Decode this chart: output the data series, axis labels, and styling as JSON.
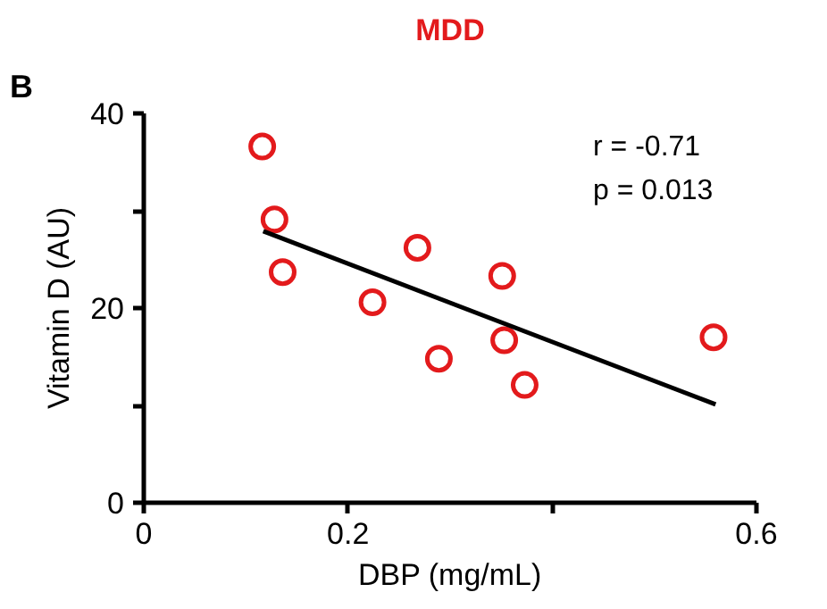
{
  "chart_data": {
    "type": "scatter",
    "title": "MDD",
    "xlabel": "DBP (mg/mL)",
    "ylabel": "Vitamin D (AU)",
    "annotations": [
      "B",
      "r = -0.71",
      "p =  0.013"
    ],
    "xlim": [
      0,
      0.6
    ],
    "ylim": [
      0,
      40
    ],
    "xticks": [
      0,
      0.2,
      {
        "value": 0.4,
        "label": null
      },
      0.6
    ],
    "yticks": [
      0,
      {
        "value": 10,
        "label": null
      },
      20,
      {
        "value": 30,
        "label": null
      },
      40
    ],
    "grid": false,
    "series": [
      {
        "marker": "circle",
        "color": "#e31a1c",
        "x": [
          0.116,
          0.128,
          0.136,
          0.224,
          0.268,
          0.289,
          0.351,
          0.353,
          0.373,
          0.558
        ],
        "values": [
          36.6,
          29.1,
          23.7,
          20.6,
          26.2,
          14.8,
          23.3,
          16.7,
          12.1,
          17.0
        ]
      },
      {
        "type": "line",
        "color": "#000000",
        "x": [
          0.117,
          0.56
        ],
        "values": [
          27.9,
          10.1
        ]
      }
    ]
  }
}
